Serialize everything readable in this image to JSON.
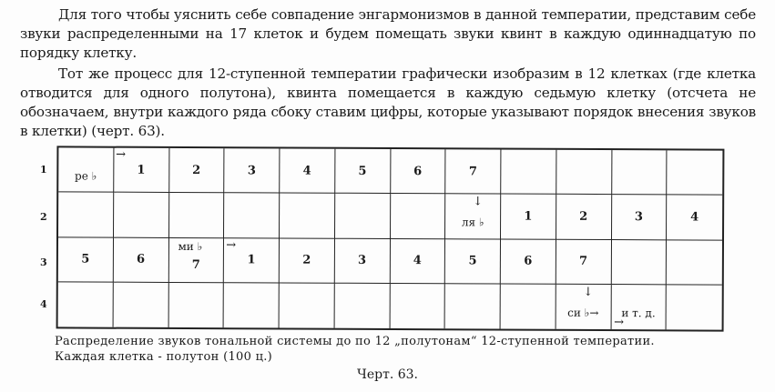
{
  "paragraphs": [
    "Для того чтобы уяснить себе совпадение энгармонизмов в данной температии, представим себе звуки распределенными на 17 клеток и будем помещать звуки квинт в каждую одиннадцатую по порядку клетку.",
    "Тот же процесс для 12-ступенной температии графически изобразим в 12 клетках (где клетка отводится для одного полутона), квинта помещается в каждую седьмую клетку (отсчета не обозначаем, внутри каждого ряда сбоку ставим цифры, которые указывают порядок внесения звуков в клетки) (черт. 63)."
  ],
  "table": {
    "row_labels": [
      "1",
      "2",
      "3",
      "4"
    ],
    "rows": [
      [
        {
          "t": "ре ♭",
          "note": true
        },
        {
          "t": "1",
          "arrow": "→"
        },
        {
          "t": "2"
        },
        {
          "t": "3"
        },
        {
          "t": "4"
        },
        {
          "t": "5"
        },
        {
          "t": "6"
        },
        {
          "t": "7"
        },
        {
          "t": ""
        },
        {
          "t": ""
        },
        {
          "t": ""
        },
        {
          "t": ""
        }
      ],
      [
        {
          "t": ""
        },
        {
          "t": ""
        },
        {
          "t": ""
        },
        {
          "t": ""
        },
        {
          "t": ""
        },
        {
          "t": ""
        },
        {
          "t": ""
        },
        {
          "t": "ля ♭",
          "note": true,
          "down": "↓"
        },
        {
          "t": "1"
        },
        {
          "t": "2"
        },
        {
          "t": "3"
        },
        {
          "t": "4"
        }
      ],
      [
        {
          "t": "5"
        },
        {
          "t": "6"
        },
        {
          "t": "7",
          "above": "ми ♭"
        },
        {
          "t": "1",
          "arrow": "→"
        },
        {
          "t": "2"
        },
        {
          "t": "3"
        },
        {
          "t": "4"
        },
        {
          "t": "5"
        },
        {
          "t": "6"
        },
        {
          "t": "7"
        },
        {
          "t": ""
        },
        {
          "t": ""
        }
      ],
      [
        {
          "t": ""
        },
        {
          "t": ""
        },
        {
          "t": ""
        },
        {
          "t": ""
        },
        {
          "t": ""
        },
        {
          "t": ""
        },
        {
          "t": ""
        },
        {
          "t": ""
        },
        {
          "t": ""
        },
        {
          "t": "си ♭→",
          "note": true,
          "down": "↓"
        },
        {
          "t": "и т. д.",
          "note": true,
          "below": "→"
        },
        {
          "t": ""
        }
      ]
    ]
  },
  "caption": {
    "line1": "Распределение звуков тональной системы до по 12 „полутонам“ 12-ступенной температии.",
    "line2": "Каждая клетка - полутон (100 ц.)"
  },
  "figure_label": "Черт. 63."
}
